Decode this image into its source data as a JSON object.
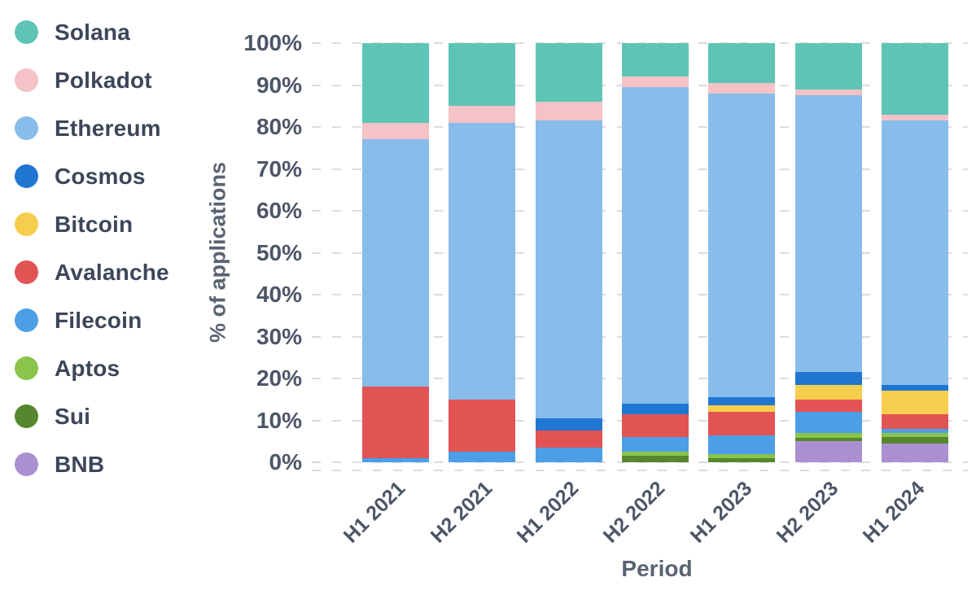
{
  "chart_data": {
    "type": "bar",
    "stacked": true,
    "orientation": "vertical",
    "title": "",
    "xlabel": "Period",
    "ylabel": "% of applications",
    "unit": "%",
    "ylim": [
      0,
      100
    ],
    "ytick_step": 10,
    "ytick_labels": [
      "0%",
      "10%",
      "20%",
      "30%",
      "40%",
      "50%",
      "60%",
      "70%",
      "80%",
      "90%",
      "100%"
    ],
    "grid": "horizontal-dashed",
    "legend_position": "left",
    "categories": [
      "H1 2021",
      "H2 2021",
      "H1 2022",
      "H2 2022",
      "H1 2023",
      "H2 2023",
      "H1 2024"
    ],
    "series": [
      {
        "name": "Solana",
        "color": "#5EC5B6",
        "values": [
          19,
          15,
          14,
          8,
          9.5,
          11,
          17
        ]
      },
      {
        "name": "Polkadot",
        "color": "#F4C2C7",
        "values": [
          4,
          4,
          4.5,
          2.5,
          2.5,
          1.5,
          1.5
        ]
      },
      {
        "name": "Ethereum",
        "color": "#88BCEA",
        "values": [
          59,
          66,
          71,
          75.5,
          72.5,
          66,
          63
        ]
      },
      {
        "name": "Cosmos",
        "color": "#2077D2",
        "values": [
          0,
          0,
          3,
          2.5,
          2,
          3,
          1.5
        ]
      },
      {
        "name": "Bitcoin",
        "color": "#F6CE4D",
        "values": [
          0,
          0,
          0,
          0,
          1.5,
          3.5,
          5.5
        ]
      },
      {
        "name": "Avalanche",
        "color": "#E25354",
        "values": [
          17,
          12.5,
          4,
          5.5,
          5.5,
          3,
          3.5
        ]
      },
      {
        "name": "Filecoin",
        "color": "#4C9FE6",
        "values": [
          1,
          2.5,
          3.5,
          3.5,
          4.5,
          5,
          1
        ]
      },
      {
        "name": "Aptos",
        "color": "#8AC44A",
        "values": [
          0,
          0,
          0,
          1,
          1,
          1.2,
          1
        ]
      },
      {
        "name": "Sui",
        "color": "#56862E",
        "values": [
          0,
          0,
          0,
          1.5,
          1,
          0.8,
          1.5
        ]
      },
      {
        "name": "BNB",
        "color": "#AB90D1",
        "values": [
          0,
          0,
          0,
          0,
          0,
          5,
          4.5
        ]
      }
    ]
  }
}
